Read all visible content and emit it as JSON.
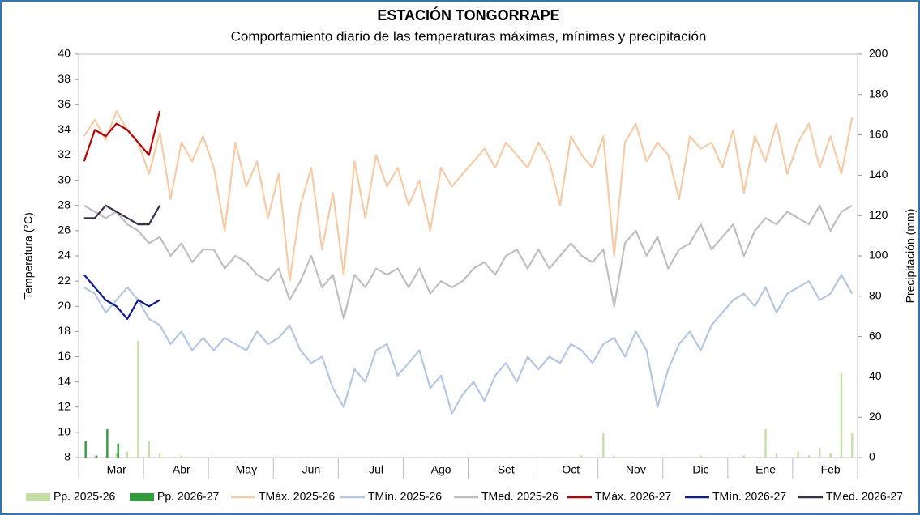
{
  "chart_data": {
    "type": "line",
    "title": "ESTACIÓN TONGORRAPE",
    "subtitle": "Comportamiento diario de las temperaturas máximas, mínimas y precipitación",
    "y_label": "Temperatura (°C)",
    "y2_label": "Precipitación (mm)",
    "categories": [
      null,
      null,
      null,
      "Mar",
      null,
      null,
      null,
      null,
      null,
      "Abr",
      null,
      null,
      null,
      null,
      null,
      "May",
      null,
      null,
      null,
      null,
      null,
      "Jun",
      null,
      null,
      null,
      null,
      null,
      "Jul",
      null,
      null,
      null,
      null,
      null,
      "Ago",
      null,
      null,
      null,
      null,
      null,
      "Set",
      null,
      null,
      null,
      null,
      null,
      "Oct",
      null,
      null,
      null,
      null,
      null,
      "Nov",
      null,
      null,
      null,
      null,
      null,
      "Dic",
      null,
      null,
      null,
      null,
      null,
      "Ene",
      null,
      null,
      null,
      null,
      null,
      "Feb",
      null,
      null
    ],
    "ylim": [
      8,
      40
    ],
    "yticks": [
      8,
      10,
      12,
      14,
      16,
      18,
      20,
      22,
      24,
      26,
      28,
      30,
      32,
      34,
      36,
      38,
      40
    ],
    "y2lim": [
      0,
      200
    ],
    "y2ticks": [
      0,
      20,
      40,
      60,
      80,
      100,
      120,
      140,
      160,
      180,
      200
    ],
    "series": [
      {
        "name": "Pp. 2025-26",
        "type": "bar",
        "axis": "y2",
        "color": "#c5e0a5",
        "values": [
          0,
          1,
          1,
          2,
          3,
          58,
          8,
          2,
          0,
          1,
          0,
          0,
          0,
          0,
          0,
          0,
          0,
          0,
          0,
          0,
          0,
          0,
          0,
          0,
          0,
          0,
          0,
          0,
          0,
          0,
          0,
          0,
          0,
          0,
          0,
          0,
          0,
          0,
          0,
          0,
          0,
          0,
          0,
          0,
          0,
          0,
          1,
          0,
          12,
          1,
          0,
          0,
          0,
          0,
          0,
          0,
          0,
          1,
          0,
          0,
          0,
          1,
          0,
          14,
          2,
          0,
          3,
          1,
          5,
          2,
          42,
          12
        ]
      },
      {
        "name": "Pp. 2026-27",
        "type": "bar",
        "axis": "y2",
        "color": "#2e9e3a",
        "values": [
          8,
          1,
          14,
          7,
          0,
          0,
          0,
          0,
          null,
          null,
          null,
          null,
          null,
          null,
          null,
          null,
          null,
          null,
          null,
          null,
          null,
          null,
          null,
          null,
          null,
          null,
          null,
          null,
          null,
          null,
          null,
          null,
          null,
          null,
          null,
          null,
          null,
          null,
          null,
          null,
          null,
          null,
          null,
          null,
          null,
          null,
          null,
          null,
          null,
          null,
          null,
          null,
          null,
          null,
          null,
          null,
          null,
          null,
          null,
          null,
          null,
          null,
          null,
          null,
          null,
          null,
          null,
          null,
          null,
          null,
          null,
          null
        ]
      },
      {
        "name": "TMáx. 2025-26",
        "type": "line",
        "color": "#f8cba5",
        "values": [
          33.5,
          34.8,
          33.2,
          35.5,
          34.0,
          33.0,
          30.5,
          33.8,
          28.5,
          33.0,
          31.5,
          33.5,
          31.0,
          26.0,
          33.0,
          29.5,
          31.5,
          27.0,
          30.5,
          22.0,
          28.0,
          31.0,
          24.5,
          29.0,
          22.5,
          31.5,
          27.0,
          32.0,
          29.5,
          31.0,
          28.0,
          30.0,
          26.0,
          31.0,
          29.5,
          30.5,
          31.5,
          32.5,
          31.0,
          33.0,
          32.0,
          31.0,
          33.0,
          31.5,
          28.0,
          33.5,
          32.0,
          31.0,
          33.5,
          24.0,
          33.0,
          34.5,
          31.5,
          33.0,
          32.0,
          28.5,
          33.5,
          32.5,
          33.0,
          31.0,
          34.0,
          29.0,
          33.5,
          31.5,
          34.5,
          30.5,
          33.0,
          34.5,
          31.0,
          33.5,
          30.5,
          35.0
        ]
      },
      {
        "name": "TMín. 2025-26",
        "type": "line",
        "color": "#b4c7e7",
        "values": [
          21.5,
          21.0,
          19.5,
          20.5,
          21.5,
          20.5,
          19.0,
          18.5,
          17.0,
          18.0,
          16.5,
          17.5,
          16.5,
          17.5,
          17.0,
          16.5,
          18.0,
          17.0,
          17.5,
          18.5,
          16.5,
          15.5,
          16.0,
          13.5,
          12.0,
          15.0,
          14.0,
          16.5,
          17.0,
          14.5,
          15.5,
          16.5,
          13.5,
          14.5,
          11.5,
          13.0,
          14.0,
          12.5,
          14.5,
          15.5,
          14.0,
          16.0,
          15.0,
          16.0,
          15.5,
          17.0,
          16.5,
          15.5,
          17.0,
          17.5,
          16.0,
          18.0,
          16.5,
          12.0,
          15.0,
          17.0,
          18.0,
          16.5,
          18.5,
          19.5,
          20.5,
          21.0,
          20.0,
          21.5,
          19.5,
          21.0,
          21.5,
          22.0,
          20.5,
          21.0,
          22.5,
          21.0
        ]
      },
      {
        "name": "TMed. 2025-26",
        "type": "line",
        "color": "#bfbfbf",
        "values": [
          28.0,
          27.5,
          27.0,
          27.5,
          26.5,
          26.0,
          25.0,
          25.5,
          24.0,
          25.0,
          23.5,
          24.5,
          24.5,
          23.0,
          24.0,
          23.5,
          22.5,
          22.0,
          23.0,
          20.5,
          22.0,
          24.0,
          21.5,
          22.5,
          19.0,
          22.5,
          21.5,
          23.0,
          22.5,
          23.0,
          21.5,
          23.0,
          21.0,
          22.0,
          21.5,
          22.0,
          23.0,
          23.5,
          22.5,
          24.0,
          24.5,
          23.0,
          24.5,
          23.0,
          24.0,
          25.0,
          24.0,
          23.5,
          24.5,
          20.0,
          25.0,
          26.0,
          24.0,
          25.5,
          23.0,
          24.5,
          25.0,
          26.5,
          24.5,
          25.5,
          26.5,
          24.0,
          26.0,
          27.0,
          26.5,
          27.5,
          27.0,
          26.5,
          28.0,
          26.0,
          27.5,
          28.0
        ]
      },
      {
        "name": "TMáx. 2026-27",
        "type": "line",
        "color": "#c00000",
        "values": [
          31.5,
          34.0,
          33.5,
          34.5,
          34.0,
          33.0,
          32.0,
          35.5,
          null,
          null,
          null,
          null,
          null,
          null,
          null,
          null,
          null,
          null,
          null,
          null,
          null,
          null,
          null,
          null,
          null,
          null,
          null,
          null,
          null,
          null,
          null,
          null,
          null,
          null,
          null,
          null,
          null,
          null,
          null,
          null,
          null,
          null,
          null,
          null,
          null,
          null,
          null,
          null,
          null,
          null,
          null,
          null,
          null,
          null,
          null,
          null,
          null,
          null,
          null,
          null,
          null,
          null,
          null,
          null,
          null,
          null,
          null,
          null,
          null,
          null,
          null,
          null
        ]
      },
      {
        "name": "TMín. 2026-27",
        "type": "line",
        "color": "#0a1a9a",
        "values": [
          22.5,
          21.5,
          20.5,
          20.0,
          19.0,
          20.5,
          20.0,
          20.5,
          null,
          null,
          null,
          null,
          null,
          null,
          null,
          null,
          null,
          null,
          null,
          null,
          null,
          null,
          null,
          null,
          null,
          null,
          null,
          null,
          null,
          null,
          null,
          null,
          null,
          null,
          null,
          null,
          null,
          null,
          null,
          null,
          null,
          null,
          null,
          null,
          null,
          null,
          null,
          null,
          null,
          null,
          null,
          null,
          null,
          null,
          null,
          null,
          null,
          null,
          null,
          null,
          null,
          null,
          null,
          null,
          null,
          null,
          null,
          null,
          null,
          null,
          null,
          null
        ]
      },
      {
        "name": "TMed. 2026-27",
        "type": "line",
        "color": "#3a3050",
        "values": [
          27.0,
          27.0,
          28.0,
          27.5,
          27.0,
          26.5,
          26.5,
          28.0,
          null,
          null,
          null,
          null,
          null,
          null,
          null,
          null,
          null,
          null,
          null,
          null,
          null,
          null,
          null,
          null,
          null,
          null,
          null,
          null,
          null,
          null,
          null,
          null,
          null,
          null,
          null,
          null,
          null,
          null,
          null,
          null,
          null,
          null,
          null,
          null,
          null,
          null,
          null,
          null,
          null,
          null,
          null,
          null,
          null,
          null,
          null,
          null,
          null,
          null,
          null,
          null,
          null,
          null,
          null,
          null,
          null,
          null,
          null,
          null,
          null,
          null,
          null,
          null
        ]
      }
    ]
  }
}
